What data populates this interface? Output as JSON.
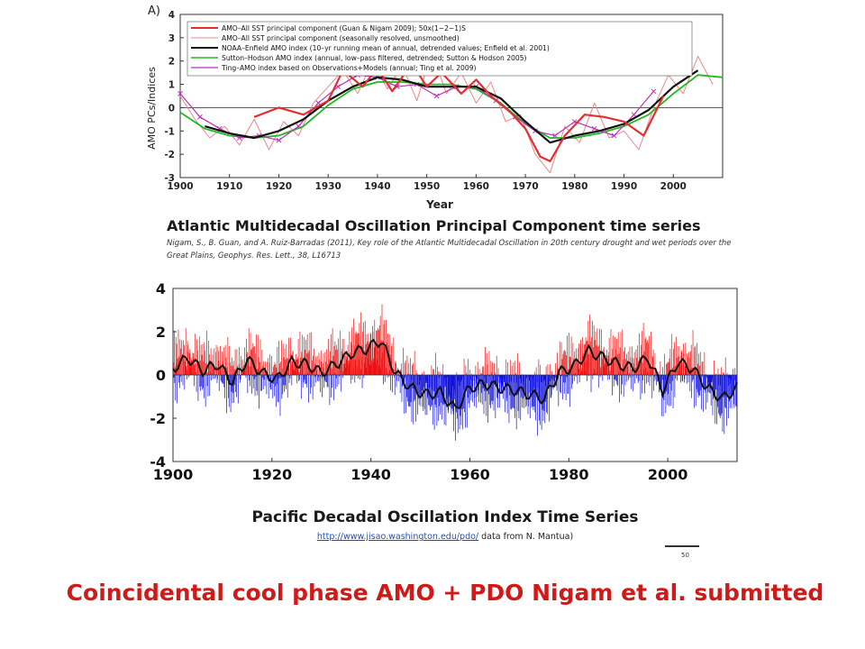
{
  "amo_caption": {
    "title": "Atlantic Multidecadal Oscillation Principal Component time series",
    "citation": "Nigam, S., B. Guan, and A. Ruiz-Barradas (2011), Key role of the Atlantic Multidecadal Oscillation in 20th century drought and wet periods over the Great Plains, Geophys. Res. Lett., 38, L16713"
  },
  "pdo_caption": {
    "title": "Pacific Decadal Oscillation Index Time Series",
    "link": "http://www.jisao.washington.edu/pdo/",
    "note": " data from N. Mantua)"
  },
  "scale_label": "50",
  "footer": "Coincidental cool phase AMO + PDO Nigam et al. submitted",
  "colors": {
    "amo_thick": "#e03030",
    "amo_thin": "#e88888",
    "noaa": "#111111",
    "sutton": "#22b822",
    "ting": "#b832b8",
    "pdo_pos": "#ee1111",
    "pdo_neg": "#1111dd",
    "footer": "#d01a1a"
  },
  "chart_data": [
    {
      "type": "line",
      "panel_label": "A)",
      "ylabel": "AMO PCs/Indices",
      "xlabel": "Year",
      "xlim": [
        1900,
        2010
      ],
      "ylim": [
        -3,
        4
      ],
      "x_ticks": [
        "1900",
        "1910",
        "1920",
        "1930",
        "1940",
        "1950",
        "1960",
        "1970",
        "1980",
        "1990",
        "2000"
      ],
      "y_ticks": [
        "-3",
        "-2",
        "-1",
        "0",
        "1",
        "2",
        "3",
        "4"
      ],
      "legend": [
        "AMO–All SST principal component (Guan & Nigam 2009); 50x(1−2−1)S",
        "AMO–All SST principal component (seasonally resolved, unsmoothed)",
        "NOAA–Enfield AMO index (10–yr running mean of annual, detrended values; Enfield et al. 2001)",
        "Sutton–Hodson AMO index (annual, low–pass filtered, detrended; Sutton & Hodson 2005)",
        "Ting–AMO index based on Observations+Models (annual; Ting et al. 2009)"
      ],
      "series": [
        {
          "color_key": "amo_thick",
          "x": [
            1915,
            1920,
            1925,
            1930,
            1933,
            1937,
            1940,
            1943,
            1947,
            1950,
            1953,
            1957,
            1960,
            1963,
            1967,
            1970,
            1973,
            1975,
            1978,
            1982,
            1986,
            1990,
            1994,
            1998
          ],
          "values": [
            -0.4,
            0.0,
            -0.3,
            0.3,
            1.6,
            0.9,
            1.7,
            0.7,
            1.9,
            0.9,
            1.5,
            0.6,
            1.2,
            0.5,
            -0.2,
            -0.9,
            -2.1,
            -2.3,
            -1.2,
            -0.3,
            -0.4,
            -0.6,
            -1.2,
            0.5
          ]
        },
        {
          "color_key": "amo_thin",
          "x": [
            1900,
            1903,
            1906,
            1909,
            1912,
            1915,
            1918,
            1921,
            1924,
            1927,
            1930,
            1933,
            1936,
            1939,
            1942,
            1945,
            1948,
            1951,
            1954,
            1957,
            1960,
            1963,
            1966,
            1969,
            1972,
            1975,
            1978,
            1981,
            1984,
            1987,
            1990,
            1993,
            1996,
            1999,
            2002,
            2005,
            2008
          ],
          "values": [
            0.5,
            -0.5,
            -1.3,
            -0.8,
            -1.6,
            -0.5,
            -1.8,
            -0.6,
            -1.2,
            0.2,
            0.9,
            1.6,
            0.6,
            2.0,
            0.8,
            1.8,
            0.3,
            2.4,
            0.6,
            1.5,
            0.2,
            1.1,
            -0.6,
            -0.3,
            -2.0,
            -2.8,
            -0.8,
            -1.5,
            0.2,
            -1.3,
            -1.0,
            -1.8,
            0.0,
            1.4,
            0.6,
            2.2,
            1.0
          ]
        },
        {
          "color_key": "noaa",
          "x": [
            1905,
            1910,
            1915,
            1920,
            1925,
            1930,
            1935,
            1940,
            1945,
            1950,
            1955,
            1960,
            1965,
            1970,
            1975,
            1980,
            1985,
            1990,
            1995,
            2000,
            2005
          ],
          "values": [
            -0.8,
            -1.1,
            -1.3,
            -1.0,
            -0.5,
            0.3,
            0.9,
            1.3,
            1.2,
            0.9,
            0.9,
            0.9,
            0.4,
            -0.6,
            -1.5,
            -1.2,
            -1.0,
            -0.7,
            -0.1,
            0.9,
            1.6
          ]
        },
        {
          "color_key": "sutton",
          "x": [
            1900,
            1905,
            1910,
            1915,
            1920,
            1925,
            1930,
            1935,
            1940,
            1945,
            1950,
            1955,
            1960,
            1965,
            1970,
            1975,
            1980,
            1985,
            1990,
            1995,
            2000,
            2005,
            2010
          ],
          "values": [
            -0.2,
            -0.9,
            -1.2,
            -1.3,
            -1.2,
            -0.8,
            0.1,
            0.8,
            1.1,
            1.1,
            1.0,
            1.0,
            0.8,
            0.2,
            -0.7,
            -1.3,
            -1.3,
            -1.1,
            -0.8,
            -0.3,
            0.6,
            1.4,
            1.3
          ]
        },
        {
          "color_key": "ting",
          "x": [
            1900,
            1904,
            1908,
            1912,
            1916,
            1920,
            1924,
            1928,
            1932,
            1936,
            1940,
            1944,
            1948,
            1952,
            1956,
            1960,
            1964,
            1968,
            1972,
            1976,
            1980,
            1984,
            1988,
            1992,
            1996
          ],
          "values": [
            0.6,
            -0.4,
            -0.9,
            -1.3,
            -1.2,
            -1.4,
            -0.8,
            0.2,
            0.9,
            1.4,
            1.3,
            0.9,
            1.0,
            0.5,
            0.9,
            0.9,
            0.3,
            -0.4,
            -1.0,
            -1.2,
            -0.6,
            -0.9,
            -1.2,
            -0.3,
            0.7
          ]
        }
      ]
    },
    {
      "type": "bar",
      "xlim": [
        1900,
        2014
      ],
      "ylim": [
        -4,
        4
      ],
      "x_ticks": [
        "1900",
        "1920",
        "1940",
        "1960",
        "1980",
        "2000"
      ],
      "y_ticks": [
        "4",
        "2",
        "0",
        "-2",
        "-4"
      ],
      "pdo_anchor_years": [
        1900,
        1903,
        1906,
        1909,
        1912,
        1915,
        1918,
        1921,
        1924,
        1927,
        1930,
        1933,
        1936,
        1939,
        1942,
        1945,
        1948,
        1951,
        1954,
        1957,
        1960,
        1963,
        1966,
        1969,
        1972,
        1975,
        1978,
        1981,
        1984,
        1987,
        1990,
        1993,
        1996,
        1999,
        2002,
        2005,
        2008,
        2011,
        2014
      ],
      "pdo_smoothed": [
        0.3,
        0.8,
        0.2,
        0.5,
        -0.3,
        0.7,
        0.1,
        -0.2,
        0.6,
        0.5,
        0.1,
        0.5,
        1.0,
        1.2,
        1.6,
        0.1,
        -0.6,
        -0.9,
        -0.8,
        -1.6,
        -0.6,
        -0.4,
        -0.6,
        -0.7,
        -0.9,
        -1.1,
        0.1,
        0.4,
        1.1,
        0.8,
        0.5,
        0.3,
        0.8,
        -0.7,
        0.6,
        0.3,
        -0.6,
        -1.1,
        -0.6
      ]
    }
  ]
}
